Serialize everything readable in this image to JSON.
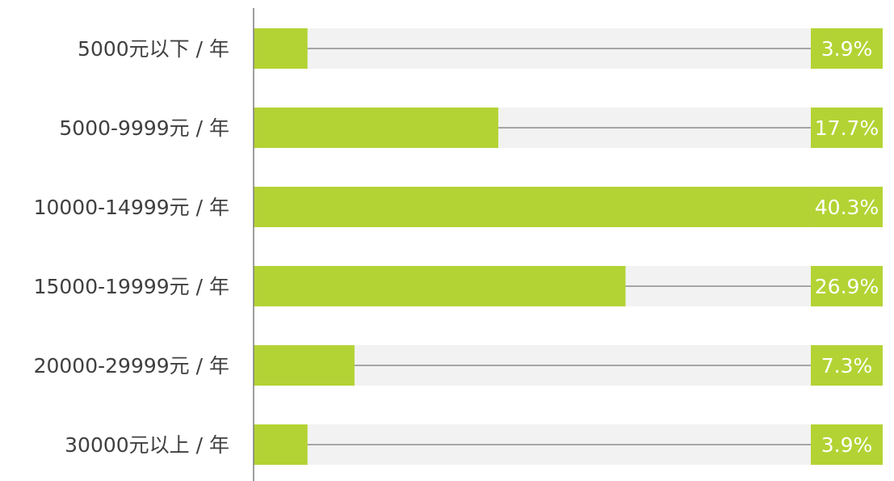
{
  "chart_data": {
    "type": "bar",
    "orientation": "horizontal",
    "categories": [
      "5000元以下 / 年",
      "5000-9999元 / 年",
      "10000-14999元 / 年",
      "15000-19999元 / 年",
      "20000-29999元 / 年",
      "30000元以上 / 年"
    ],
    "values": [
      3.9,
      17.7,
      40.3,
      26.9,
      7.3,
      3.9
    ],
    "value_labels": [
      "3.9%",
      "17.7%",
      "40.3%",
      "26.9%",
      "7.3%",
      "3.9%"
    ],
    "xlim": [
      0,
      45.5
    ],
    "grid": false,
    "legend": "none",
    "colors": {
      "bar": "#b3d334",
      "track": "#f2f2f2",
      "leader": "#a6a6a6",
      "axis": "#7f7f7f",
      "category_text": "#404040",
      "value_label_text": "#ffffff"
    }
  }
}
